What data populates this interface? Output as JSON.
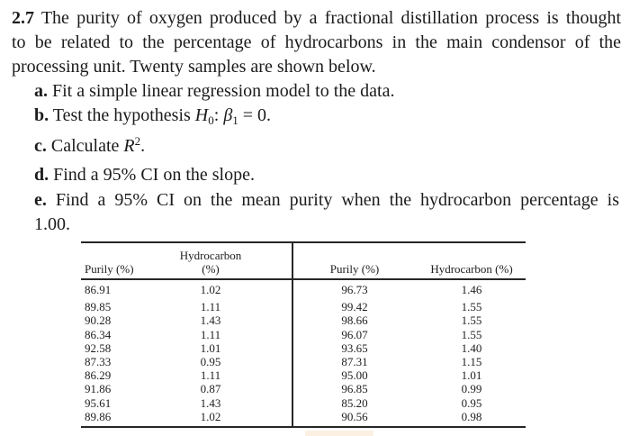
{
  "intro": {
    "number": "2.7",
    "line1": "The purity of oxygen produced by a fractional distillation process is thought",
    "line2": "to be related to the percentage of hydrocarbons in the main condensor of the",
    "line3": "processing unit. Twenty samples are shown below."
  },
  "tasks": {
    "a": {
      "label": "a.",
      "text": "Fit a simple linear regression model to the data."
    },
    "b": {
      "label": "b.",
      "prefix": "Test the hypothesis ",
      "var1": "H",
      "var1_sub": "0",
      "mid": ": ",
      "var2": "β",
      "var2_sub": "1",
      "suffix": " = 0."
    },
    "c": {
      "label": "c.",
      "prefix": "Calculate ",
      "var": "R",
      "var_sup": "2",
      "suffix": "."
    },
    "d": {
      "label": "d.",
      "text": "Find a 95% CI on the slope."
    },
    "e": {
      "label": "e.",
      "text_line1": "Find a 95% CI on the mean purity when the hydrocarbon percentage is",
      "text_line2": "1.00."
    }
  },
  "table": {
    "left": {
      "purity_header": "Purily (%)",
      "hydrocarbon_header_line1": "Hydrocarbon",
      "hydrocarbon_header_line2": "(%)",
      "rows": [
        {
          "purity": "86.91",
          "hydrocarbon": "1.02"
        },
        {
          "purity": "89.85",
          "hydrocarbon": "1.11"
        },
        {
          "purity": "90.28",
          "hydrocarbon": "1.43"
        },
        {
          "purity": "86.34",
          "hydrocarbon": "1.11"
        },
        {
          "purity": "92.58",
          "hydrocarbon": "1.01"
        },
        {
          "purity": "87.33",
          "hydrocarbon": "0.95"
        },
        {
          "purity": "86.29",
          "hydrocarbon": "1.11"
        },
        {
          "purity": "91.86",
          "hydrocarbon": "0.87"
        },
        {
          "purity": "95.61",
          "hydrocarbon": "1.43"
        },
        {
          "purity": "89.86",
          "hydrocarbon": "1.02"
        }
      ]
    },
    "right": {
      "purity_header": "Purily (%)",
      "hydrocarbon_header": "Hydrocarbon (%)",
      "rows": [
        {
          "purity": "96.73",
          "hydrocarbon": "1.46"
        },
        {
          "purity": "99.42",
          "hydrocarbon": "1.55"
        },
        {
          "purity": "98.66",
          "hydrocarbon": "1.55"
        },
        {
          "purity": "96.07",
          "hydrocarbon": "1.55"
        },
        {
          "purity": "93.65",
          "hydrocarbon": "1.40"
        },
        {
          "purity": "87.31",
          "hydrocarbon": "1.15"
        },
        {
          "purity": "95.00",
          "hydrocarbon": "1.01"
        },
        {
          "purity": "96.85",
          "hydrocarbon": "0.99"
        },
        {
          "purity": "85.20",
          "hydrocarbon": "0.95"
        },
        {
          "purity": "90.56",
          "hydrocarbon": "0.98"
        }
      ]
    }
  },
  "text_color": "#1b1b1b",
  "rule_color": "#262626"
}
